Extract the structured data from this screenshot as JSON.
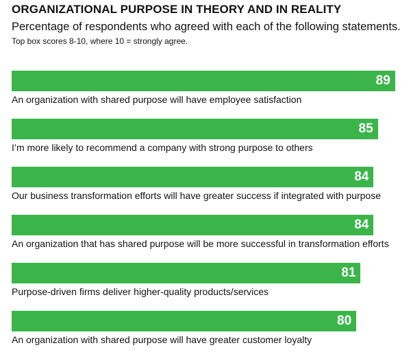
{
  "header": {
    "title": "ORGANIZATIONAL PURPOSE IN THEORY AND IN REALITY",
    "subtitle": "Percentage of respondents who agreed with each of the following statements.",
    "note": "Top box scores 8-10, where 10 = strongly agree."
  },
  "colors": {
    "bar": "#3bb54a",
    "value_text": "#ffffff",
    "text": "#111111"
  },
  "chart_data": {
    "type": "bar",
    "orientation": "horizontal",
    "title": "ORGANIZATIONAL PURPOSE IN THEORY AND IN REALITY",
    "subtitle": "Percentage of respondents who agreed with each of the following statements.",
    "annotation": "Top box scores 8-10, where 10 = strongly agree.",
    "xlabel": "",
    "ylabel": "",
    "grid": false,
    "legend": null,
    "categories": [
      "An organization with shared purpose will have employee satisfaction",
      "I’m more likely to recommend a company with strong purpose to others",
      "Our business transformation efforts will have greater success if integrated with purpose",
      "An organization that has shared purpose will be more successful in transformation efforts",
      "Purpose-driven firms deliver higher-quality products/services",
      "An organization with shared purpose will have greater customer loyalty"
    ],
    "values": [
      89,
      85,
      84,
      84,
      81,
      80
    ],
    "unit": "%"
  },
  "bars": [
    {
      "label": "An organization with shared purpose will have employee satisfaction",
      "value": "89"
    },
    {
      "label": "I’m more likely to recommend a company with strong purpose to others",
      "value": "85"
    },
    {
      "label": "Our business transformation efforts will have greater success if integrated with purpose",
      "value": "84"
    },
    {
      "label": "An organization that has shared purpose will be more successful in transformation efforts",
      "value": "84"
    },
    {
      "label": "Purpose-driven firms deliver higher-quality products/services",
      "value": "81"
    },
    {
      "label": "An organization with shared purpose will have greater customer loyalty",
      "value": "80"
    }
  ]
}
